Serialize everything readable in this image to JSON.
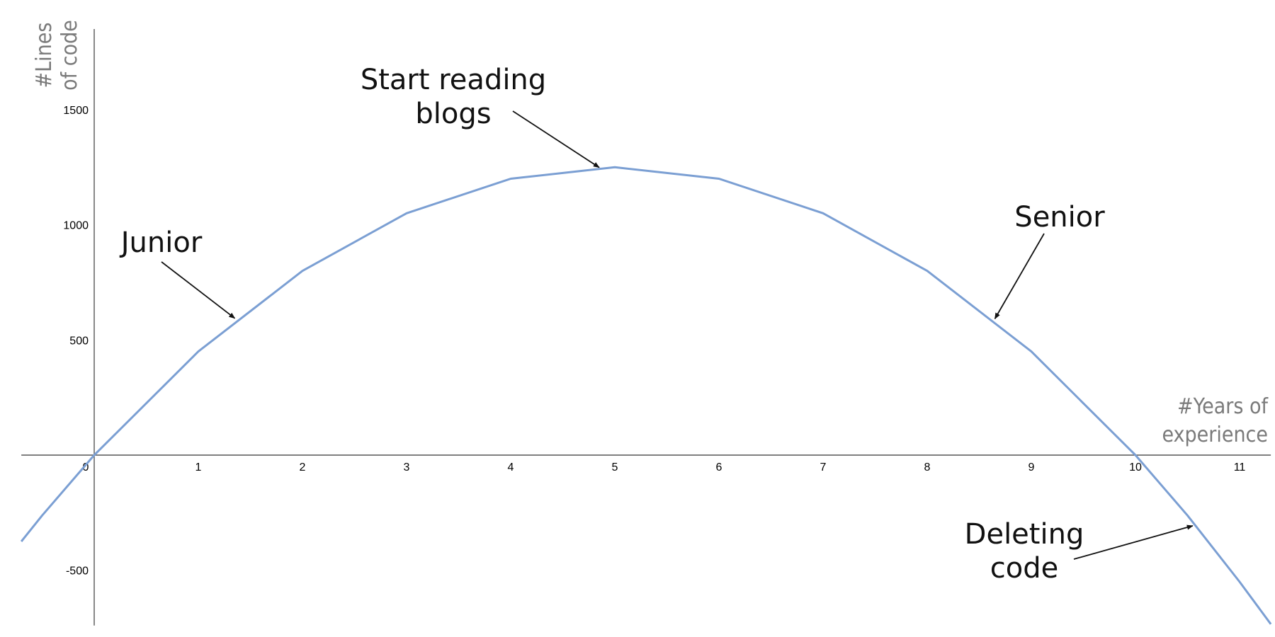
{
  "chart_data": {
    "type": "line",
    "xlabel": [
      "#Years of",
      "experience"
    ],
    "ylabel": [
      "#Lines",
      "of code"
    ],
    "xlim": [
      -0.7,
      11.3
    ],
    "ylim": [
      -740,
      1850
    ],
    "x_ticks": [
      "0",
      "1",
      "2",
      "3",
      "4",
      "5",
      "6",
      "7",
      "8",
      "9",
      "10",
      "11"
    ],
    "y_ticks": [
      "-500",
      "500",
      "1000",
      "1500"
    ],
    "grid": false,
    "legend": "none",
    "curve_color": "#7b9fd3",
    "series": [
      {
        "x": [
          -0.7,
          -0.5,
          0,
          1,
          2,
          3,
          4,
          5,
          6,
          7,
          8,
          9,
          10,
          10.5,
          11,
          11.3
        ],
        "y": [
          -375,
          -262,
          0,
          450,
          800,
          1050,
          1200,
          1250,
          1200,
          1050,
          800,
          450,
          0,
          -262,
          -550,
          -734
        ]
      }
    ],
    "annotations": [
      {
        "id": "junior",
        "lines": [
          "Junior"
        ],
        "target": [
          1.35,
          594
        ]
      },
      {
        "id": "blogs",
        "lines": [
          "Start reading",
          "blogs"
        ],
        "target": [
          4.85,
          1249
        ]
      },
      {
        "id": "senior",
        "lines": [
          "Senior"
        ],
        "target": [
          8.65,
          592
        ]
      },
      {
        "id": "deleting",
        "lines": [
          "Deleting",
          "code"
        ],
        "target": [
          10.55,
          -307
        ]
      }
    ]
  }
}
